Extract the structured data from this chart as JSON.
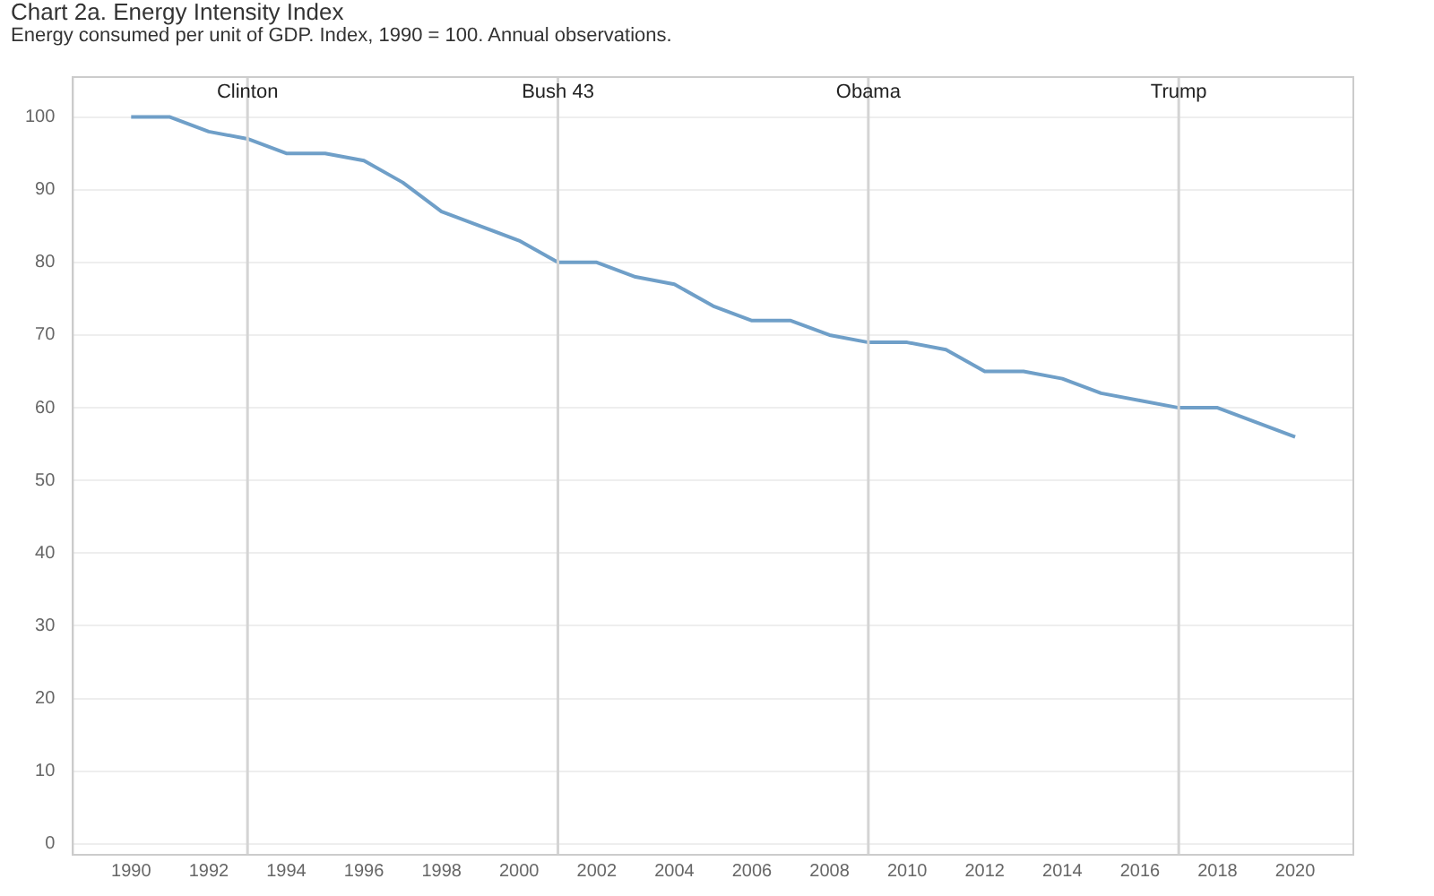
{
  "chart_data": {
    "type": "line",
    "title": "Chart 2a. Energy Intensity Index",
    "subtitle": "Energy consumed per unit of GDP. Index, 1990 = 100. Annual observations.",
    "x": [
      1990,
      1991,
      1992,
      1993,
      1994,
      1995,
      1996,
      1997,
      1998,
      1999,
      2000,
      2001,
      2002,
      2003,
      2004,
      2005,
      2006,
      2007,
      2008,
      2009,
      2010,
      2011,
      2012,
      2013,
      2014,
      2015,
      2016,
      2017,
      2018,
      2019,
      2020
    ],
    "series": [
      {
        "color": "#6f9fc8",
        "values": [
          100,
          100,
          98,
          97,
          95,
          95,
          94,
          91,
          87,
          85,
          83,
          80,
          80,
          78,
          77,
          74,
          72,
          72,
          70,
          69,
          69,
          68,
          65,
          65,
          64,
          62,
          61,
          60,
          60,
          58,
          56
        ]
      }
    ],
    "xlim": [
      1988.5,
      2021.5
    ],
    "xticks": [
      1990,
      1992,
      1994,
      1996,
      1998,
      2000,
      2002,
      2004,
      2006,
      2008,
      2010,
      2012,
      2014,
      2016,
      2018,
      2020
    ],
    "ylim": [
      -1.5,
      105.5
    ],
    "yticks": [
      0,
      10,
      20,
      30,
      40,
      50,
      60,
      70,
      80,
      90,
      100
    ],
    "ref_lines": [
      {
        "axis": "x",
        "value": 1993,
        "label": "Clinton",
        "color": "#d4d4d4"
      },
      {
        "axis": "x",
        "value": 2001,
        "label": "Bush 43",
        "color": "#d4d4d4"
      },
      {
        "axis": "x",
        "value": 2009,
        "label": "Obama",
        "color": "#d4d4d4"
      },
      {
        "axis": "x",
        "value": 2017,
        "label": "Trump",
        "color": "#d4d4d4"
      }
    ],
    "grid": "y",
    "legend": false,
    "marker": "none",
    "line_style": "solid"
  }
}
